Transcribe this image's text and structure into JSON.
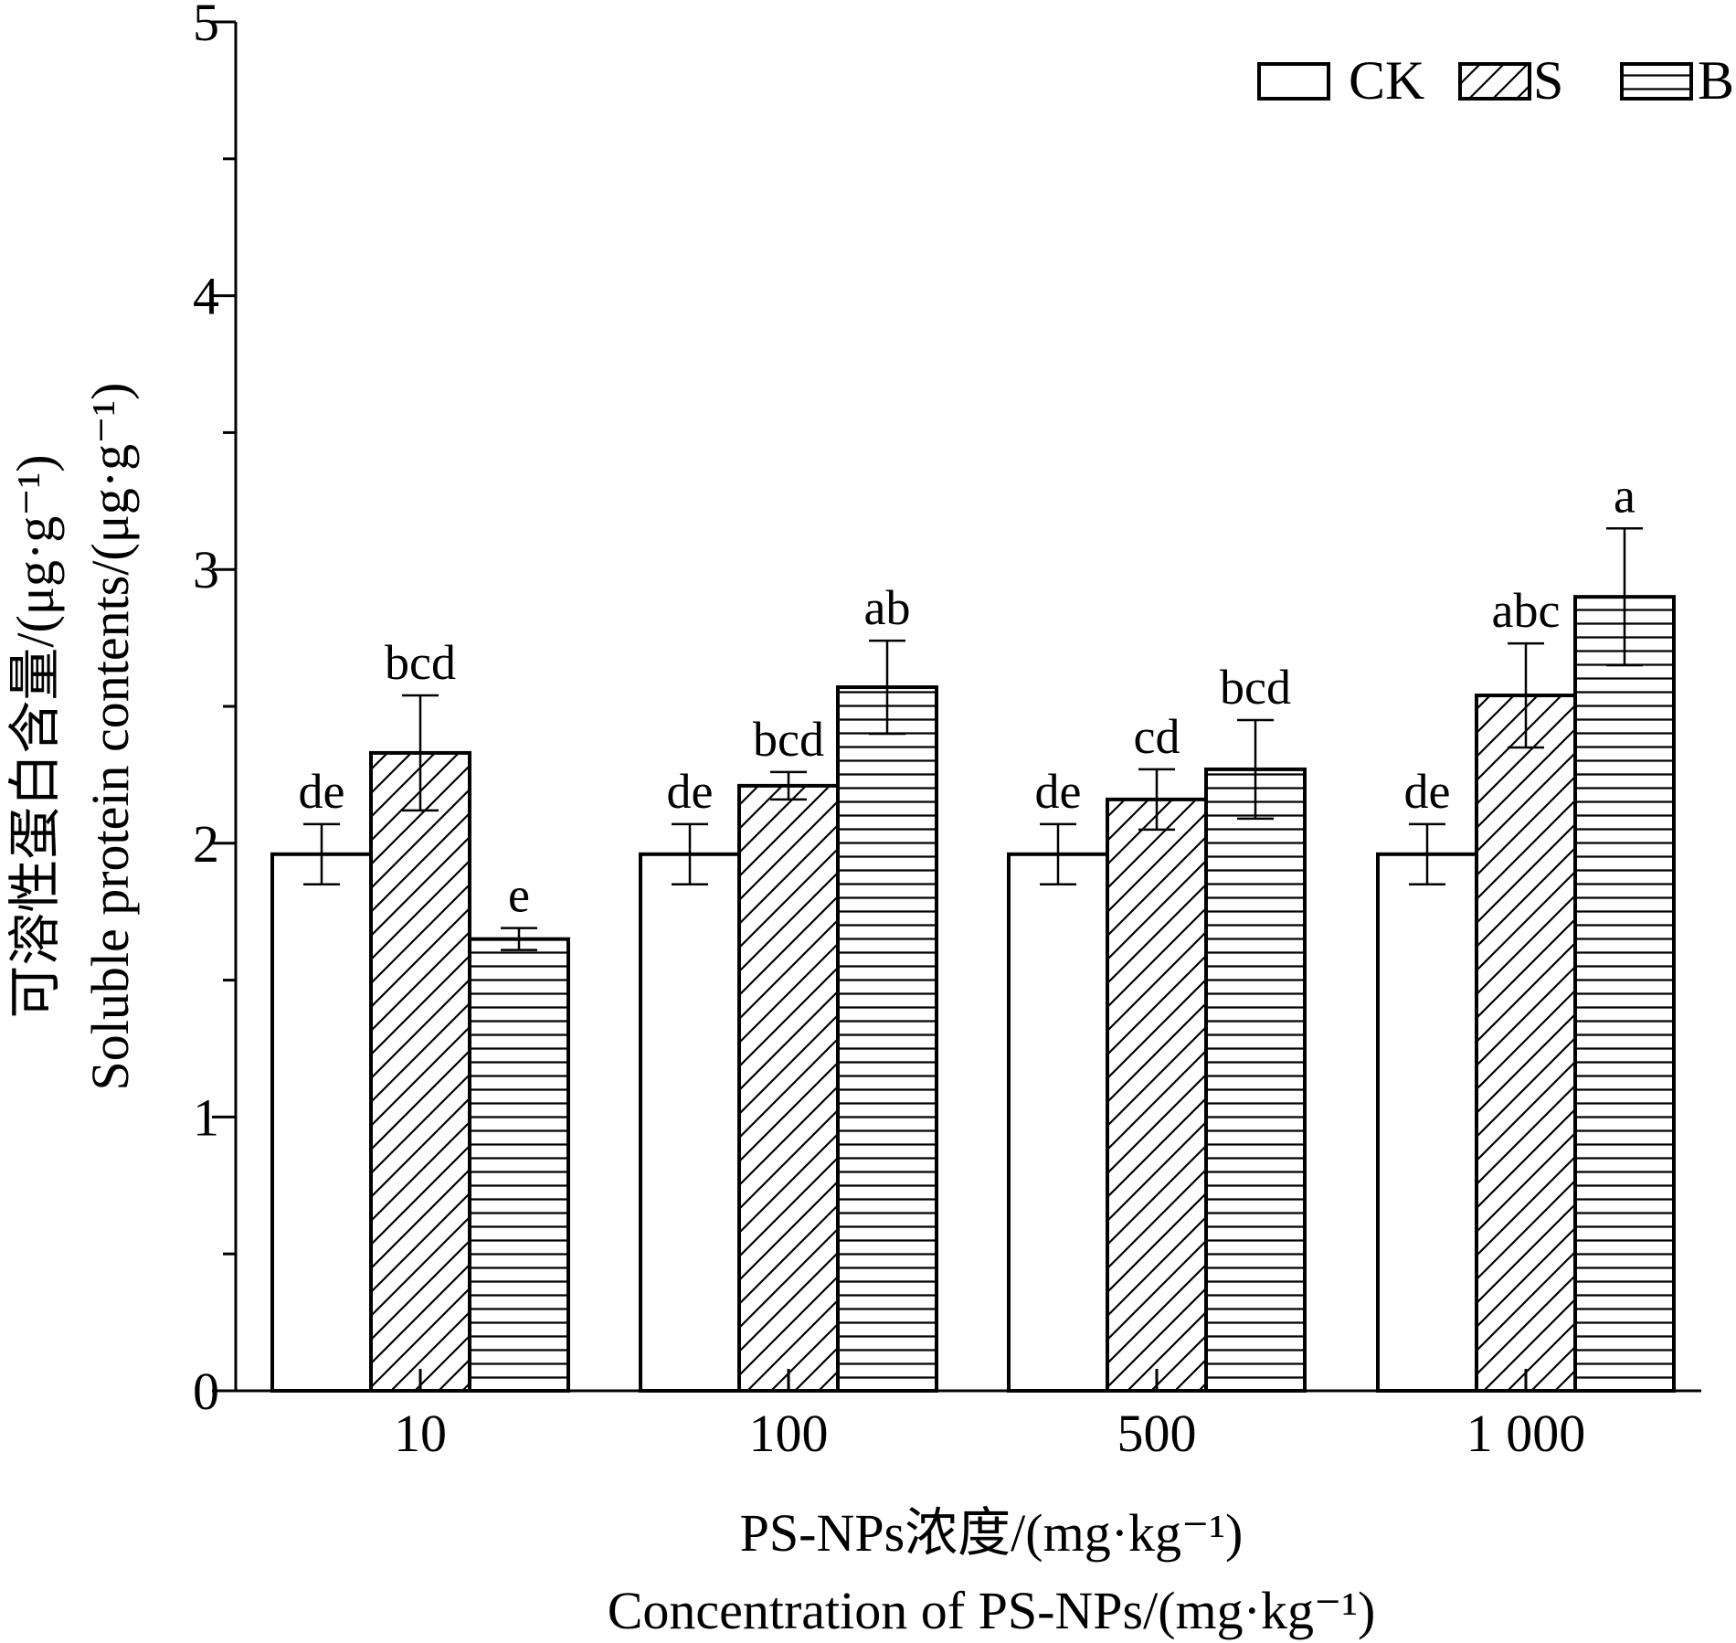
{
  "chart_data": {
    "type": "bar",
    "title": "",
    "xlabel": [
      "PS-NPs浓度/(mg·kg⁻¹)",
      "Concentration of PS-NPs/(mg·kg⁻¹)"
    ],
    "ylabel": [
      "可溶性蛋白含量/(μg·g⁻¹)",
      "Soluble protein contents/(μg·g⁻¹)"
    ],
    "categories": [
      "10",
      "100",
      "500",
      "1 000"
    ],
    "ylim": [
      0,
      5
    ],
    "yticks": [
      "0",
      "1",
      "2",
      "3",
      "4",
      "5"
    ],
    "legend_position": "top-right",
    "grid": false,
    "series": [
      {
        "name": "CK",
        "pattern": "none",
        "values": [
          1.96,
          1.96,
          1.96,
          1.96
        ],
        "errors": [
          0.11,
          0.11,
          0.11,
          0.11
        ],
        "labels": [
          "de",
          "de",
          "de",
          "de"
        ]
      },
      {
        "name": "S",
        "pattern": "diagonal",
        "values": [
          2.33,
          2.21,
          2.16,
          2.54
        ],
        "errors": [
          0.21,
          0.05,
          0.11,
          0.19
        ],
        "labels": [
          "bcd",
          "bcd",
          "cd",
          "abc"
        ]
      },
      {
        "name": "B",
        "pattern": "horizontal",
        "values": [
          1.65,
          2.57,
          2.27,
          2.9
        ],
        "errors": [
          0.04,
          0.17,
          0.18,
          0.25
        ],
        "labels": [
          "e",
          "ab",
          "bcd",
          "a"
        ]
      }
    ]
  }
}
